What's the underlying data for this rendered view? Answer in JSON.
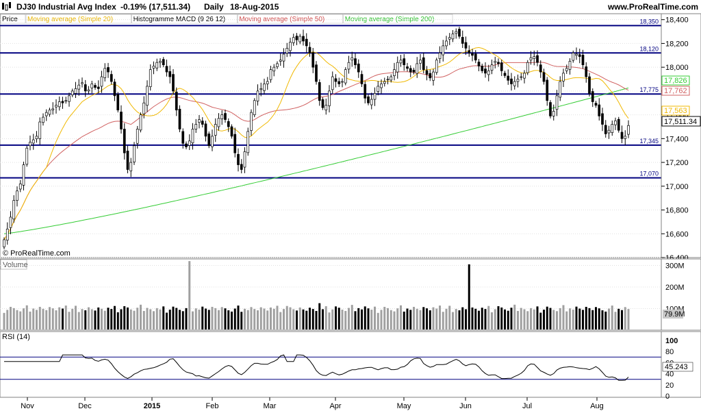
{
  "header": {
    "symbol": "DJ30 Industrial Avg Index",
    "change": "-0.19% (17,511.34)",
    "period": "Daily",
    "date": "18-Aug-2015",
    "brand": "www.ProRealTime.com"
  },
  "legend": [
    {
      "label": "Price",
      "color": "#000000"
    },
    {
      "label": "Moving average (Simple 20)",
      "color": "#e8b400"
    },
    {
      "label": "Histogramme MACD (9 26 12)",
      "color": "#000000"
    },
    {
      "label": "Moving average (Simple 50)",
      "color": "#d05050"
    },
    {
      "label": "Moving average (Simple 200)",
      "color": "#30c030"
    }
  ],
  "watermark": "© ProRealTime.com",
  "price_axis": {
    "ticks": [
      "18,400",
      "18,200",
      "18,000",
      "17,800",
      "17,600",
      "17,400",
      "17,200",
      "17,000",
      "16,800",
      "16,600",
      "16,400"
    ]
  },
  "volume_panel": {
    "label": "Volume",
    "ticks": [
      "300M",
      "200M",
      "100M"
    ],
    "last_label": "79.9M"
  },
  "rsi_panel": {
    "label": "RSI (14)",
    "ticks": [
      "100",
      "80",
      "60",
      "40",
      "20",
      "0"
    ],
    "last_label": "45.243",
    "levels": [
      70,
      30
    ]
  },
  "months": [
    "Nov",
    "Dec",
    "2015",
    "Feb",
    "Mar",
    "Apr",
    "May",
    "Jun",
    "Jul",
    "Aug"
  ],
  "colors": {
    "up": "#ffffff",
    "down": "#000000",
    "hline": "#000080",
    "grid": "#e0e0e0",
    "sma20": "#f0b800",
    "sma50": "#d06060",
    "sma200": "#33cc33",
    "volume_up": "#a0a0a0",
    "volume_down": "#000000",
    "rsi_fill": "#c080c0"
  },
  "chart_data": {
    "type": "candlestick",
    "title": "DJ30 Industrial Avg Index",
    "period": "Daily",
    "ylim": [
      16400,
      18450
    ],
    "horizontal_levels": [
      {
        "value": 18350,
        "label": "18,350"
      },
      {
        "value": 18120,
        "label": "18,120"
      },
      {
        "value": 17775,
        "label": "17,775"
      },
      {
        "value": 17345,
        "label": "17,345"
      },
      {
        "value": 17070,
        "label": "17,070"
      }
    ],
    "last_values": [
      {
        "name": "SMA 200",
        "value": 17826,
        "label": "17,826"
      },
      {
        "name": "SMA 50",
        "value": 17762,
        "label": "17,762"
      },
      {
        "name": "SMA 20",
        "value": 17563,
        "label": "17,563"
      },
      {
        "name": "Price",
        "value": 17511.34,
        "label": "17,511.34"
      }
    ],
    "close": [
      16550,
      16640,
      16740,
      16880,
      16960,
      17020,
      17180,
      17320,
      17370,
      17390,
      17420,
      17540,
      17580,
      17620,
      17640,
      17650,
      17680,
      17710,
      17700,
      17720,
      17760,
      17800,
      17820,
      17850,
      17870,
      17800,
      17810,
      17860,
      17830,
      17820,
      17920,
      17990,
      17960,
      17880,
      17760,
      17640,
      17480,
      17280,
      17140,
      17200,
      17340,
      17480,
      17600,
      17700,
      17840,
      17980,
      18010,
      18040,
      18050,
      18020,
      17960,
      17920,
      17800,
      17640,
      17480,
      17360,
      17330,
      17380,
      17480,
      17520,
      17560,
      17520,
      17420,
      17340,
      17420,
      17520,
      17570,
      17600,
      17560,
      17500,
      17420,
      17280,
      17180,
      17140,
      17290,
      17460,
      17620,
      17720,
      17800,
      17820,
      17860,
      17880,
      17980,
      18000,
      18030,
      18060,
      18110,
      18160,
      18210,
      18250,
      18230,
      18260,
      18220,
      18180,
      18120,
      18000,
      17880,
      17720,
      17660,
      17680,
      17800,
      17920,
      17880,
      17860,
      17880,
      17980,
      18040,
      18080,
      18020,
      17960,
      17860,
      17740,
      17700,
      17730,
      17780,
      17840,
      17860,
      17880,
      17900,
      17920,
      17980,
      18040,
      18060,
      18020,
      17990,
      17960,
      17960,
      18030,
      18060,
      17980,
      17940,
      17910,
      17960,
      18060,
      18120,
      18180,
      18220,
      18250,
      18280,
      18300,
      18260,
      18200,
      18160,
      18120,
      18100,
      18060,
      18010,
      17970,
      17950,
      17970,
      18020,
      18050,
      18030,
      17970,
      17930,
      17890,
      17860,
      17880,
      17900,
      17920,
      17950,
      18040,
      18080,
      18090,
      18040,
      17960,
      17880,
      17720,
      17590,
      17630,
      17760,
      17880,
      17950,
      17990,
      18050,
      18120,
      18110,
      18090,
      18020,
      17920,
      17780,
      17710,
      17680,
      17590,
      17520,
      17440,
      17470,
      17520,
      17550,
      17470,
      17400,
      17420,
      17510
    ]
  }
}
